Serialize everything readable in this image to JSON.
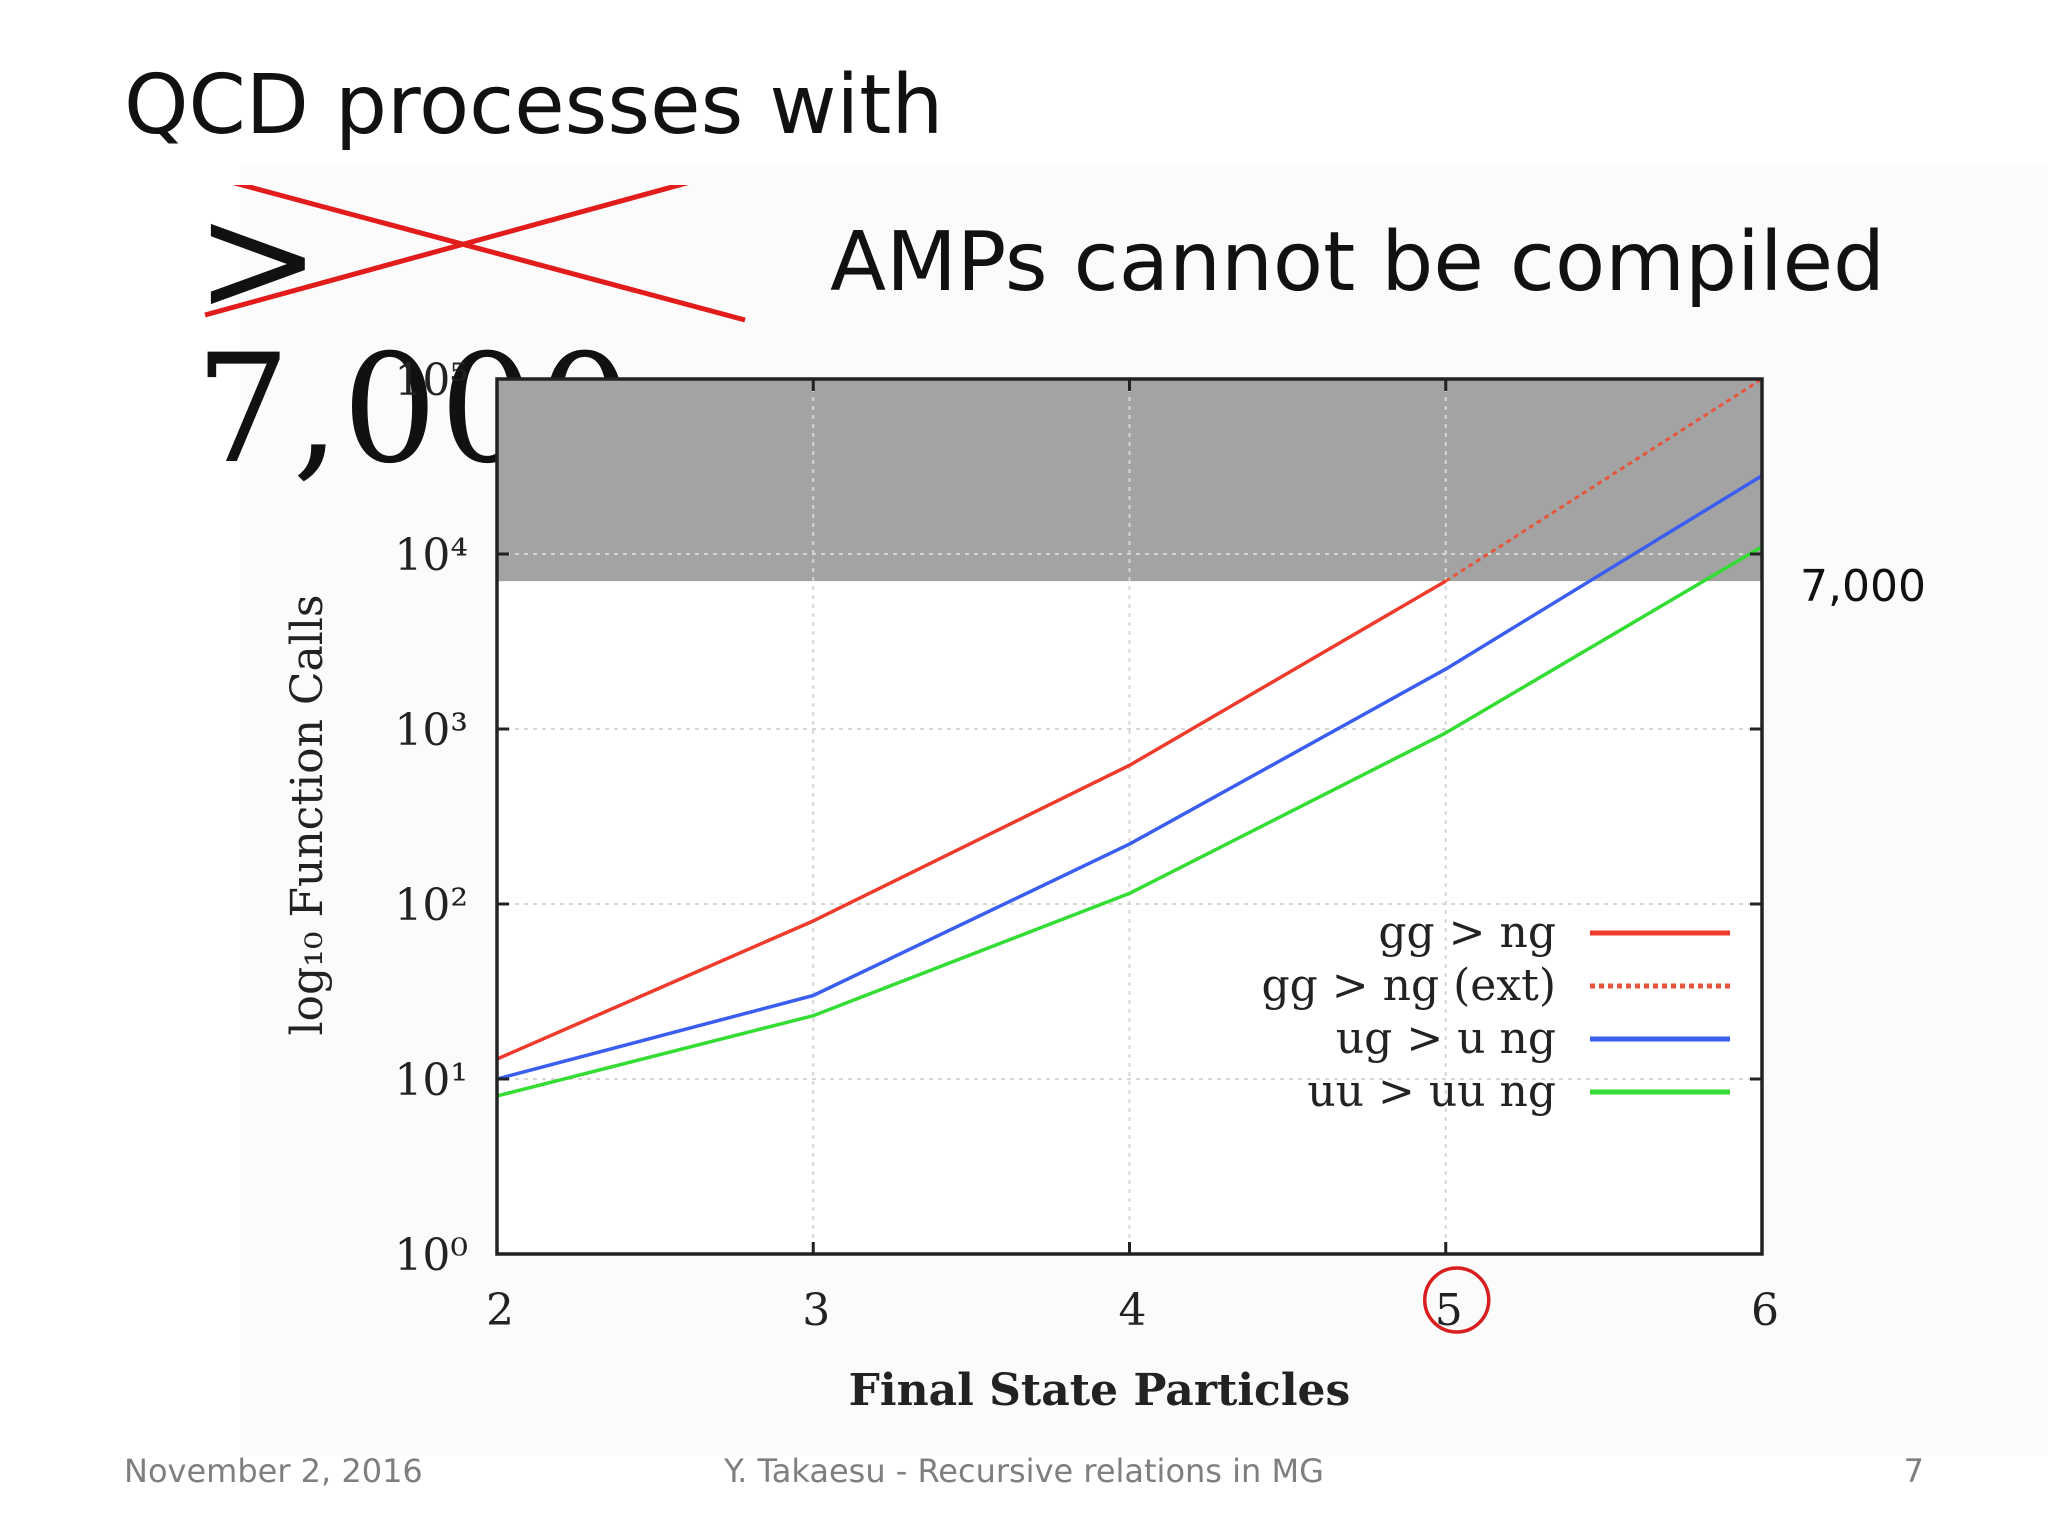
{
  "slide": {
    "title": "QCD processes with",
    "crossed_value": "> 7,000",
    "subtitle": "AMPs cannot be compiled",
    "annotation": "7,000",
    "footer_date": "November 2, 2016",
    "footer_center": "Y. Takaesu - Recursive relations in MG",
    "page_number": "7"
  },
  "colors": {
    "shade": "#a3a3a3",
    "strike": "#e21b1b",
    "circle": "#d81e1e"
  },
  "chart_data": {
    "type": "line",
    "xlabel": "Final State Particles",
    "ylabel": "log₁₀ Function Calls",
    "x_ticks": [
      "2",
      "3",
      "4",
      "5",
      "6"
    ],
    "y_ticks": [
      "10⁰",
      "10¹",
      "10²",
      "10³",
      "10⁴",
      "10⁵"
    ],
    "xlim": [
      2,
      6
    ],
    "ylim_log10": [
      0,
      5
    ],
    "y_scale": "log",
    "grid": true,
    "legend_position": "right",
    "shaded_region": {
      "from": 7000,
      "to": 100000
    },
    "circled_x_tick": "5",
    "series": [
      {
        "name": "gg > ng",
        "color": "#ef3b2c",
        "style": "solid",
        "x": [
          2,
          3,
          4,
          5
        ],
        "y": [
          13,
          80,
          620,
          7000
        ]
      },
      {
        "name": "gg > ng (ext)",
        "color": "#e6553c",
        "style": "dotted",
        "x": [
          5,
          6
        ],
        "y": [
          7000,
          100000
        ]
      },
      {
        "name": "ug > u ng",
        "color": "#3a5ef0",
        "style": "solid",
        "x": [
          2,
          3,
          4,
          5,
          6
        ],
        "y": [
          10,
          30,
          220,
          2200,
          28000
        ]
      },
      {
        "name": "uu > uu ng",
        "color": "#33dd33",
        "style": "solid",
        "x": [
          2,
          3,
          4,
          5,
          6
        ],
        "y": [
          8,
          23,
          115,
          950,
          11000
        ]
      }
    ]
  }
}
